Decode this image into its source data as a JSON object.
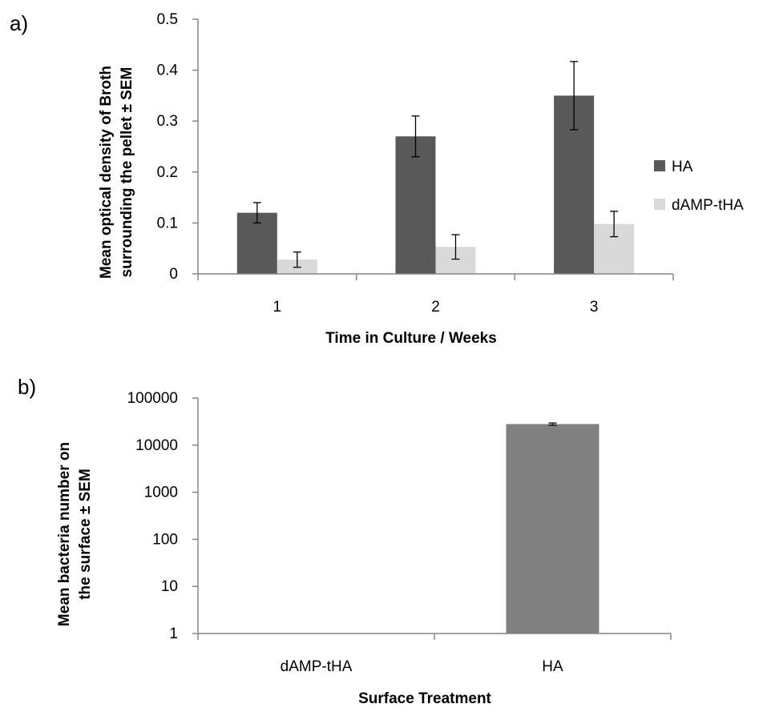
{
  "chart_data": [
    {
      "panel_label": "a)",
      "type": "bar",
      "categories": [
        "1",
        "2",
        "3"
      ],
      "series": [
        {
          "name": "HA",
          "values": [
            0.12,
            0.27,
            0.35
          ],
          "errors": [
            0.02,
            0.04,
            0.067
          ],
          "color": "#595959"
        },
        {
          "name": "dAMP-tHA",
          "values": [
            0.028,
            0.053,
            0.098
          ],
          "errors": [
            0.015,
            0.024,
            0.025
          ],
          "color": "#d9d9d9"
        }
      ],
      "xlabel": "Time in Culture / Weeks",
      "ylabel": [
        "Mean optical density of Broth",
        "surrounding the pellet ± SEM"
      ],
      "ylim": [
        0,
        0.5
      ],
      "yticks": [
        "0",
        "0.1",
        "0.2",
        "0.3",
        "0.4",
        "0.5"
      ],
      "ytick_values": [
        0,
        0.1,
        0.2,
        0.3,
        0.4,
        0.5
      ],
      "grid": false,
      "legend": "right"
    },
    {
      "panel_label": "b)",
      "type": "bar",
      "yscale": "log",
      "categories": [
        "dAMP-tHA",
        "HA"
      ],
      "values": [
        0,
        28000
      ],
      "errors": [
        0,
        1500
      ],
      "color": "#808080",
      "xlabel": "Surface Treatment",
      "ylabel": [
        "Mean bacteria number on",
        "the surface ± SEM"
      ],
      "ylim": [
        1,
        100000
      ],
      "yticks": [
        "1",
        "10",
        "100",
        "1000",
        "10000",
        "100000"
      ],
      "ytick_values": [
        1,
        10,
        100,
        1000,
        10000,
        100000
      ],
      "grid": false
    }
  ]
}
